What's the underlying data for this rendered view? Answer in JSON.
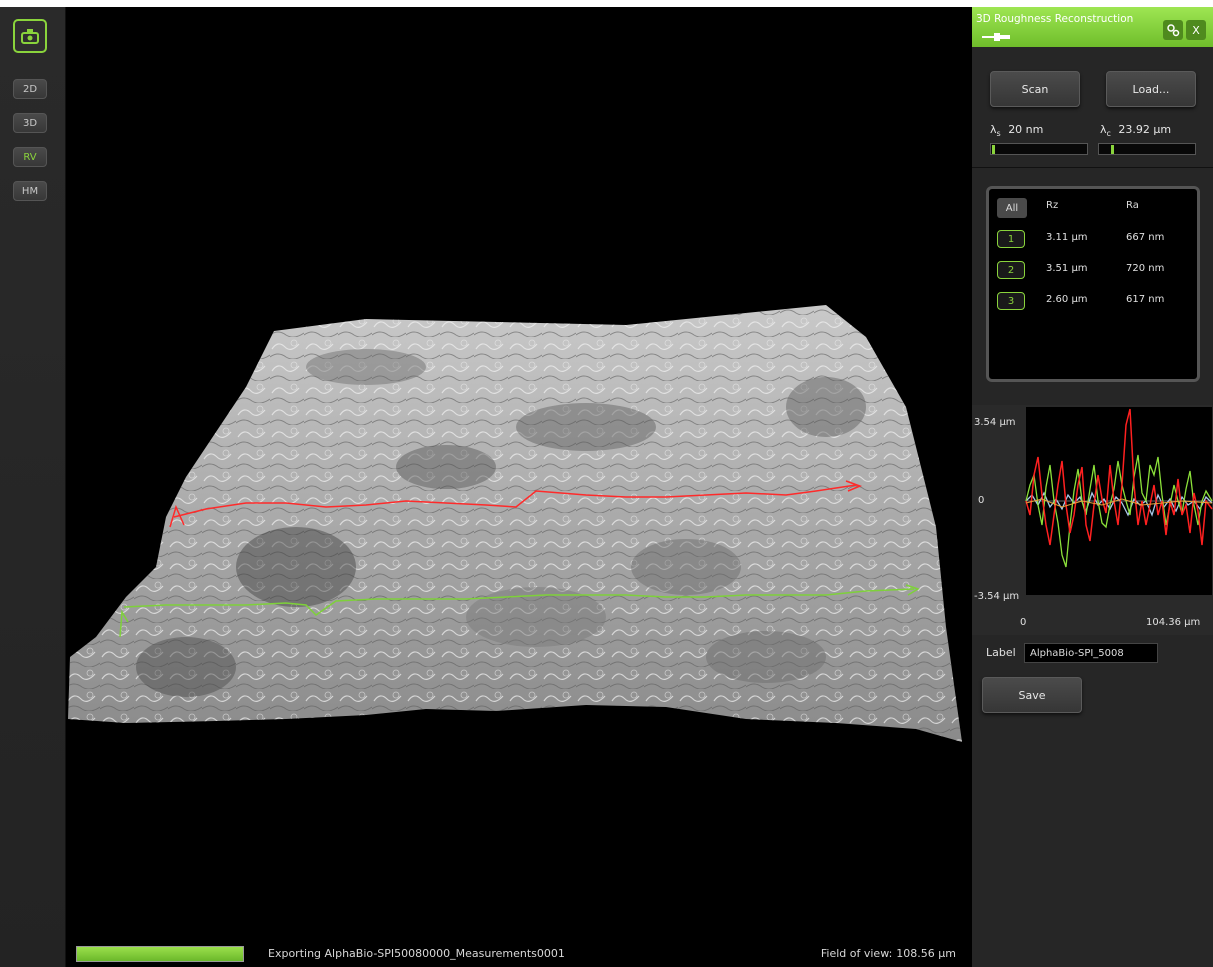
{
  "toolbar": {
    "buttons": [
      {
        "label": "2D",
        "active": false
      },
      {
        "label": "3D",
        "active": false
      },
      {
        "label": "RV",
        "active": true
      },
      {
        "label": "HM",
        "active": false
      }
    ],
    "accent_color": "#8ad43c"
  },
  "viewport": {
    "status_text": "Exporting AlphaBio-SPI50080000_Measurements0001",
    "progress": 1.0,
    "fov_label": "Field of view:",
    "fov_value": "108.56 µm",
    "profile_colors": [
      "#ff2a2a",
      "#7ed13a"
    ]
  },
  "panel": {
    "title": "3D Roughness Reconstruction",
    "close_label": "X",
    "scan_label": "Scan",
    "load_label": "Load...",
    "lambda_s_symbol": "λ",
    "lambda_s_sub": "s",
    "lambda_s_value": "20 nm",
    "lambda_c_symbol": "λ",
    "lambda_c_sub": "c",
    "lambda_c_value": "23.92 µm",
    "results": {
      "all_label": "All",
      "rz_header": "Rz",
      "ra_header": "Ra",
      "rows": [
        {
          "num": "1",
          "rz": "3.11 µm",
          "ra": "667 nm"
        },
        {
          "num": "2",
          "rz": "3.51 µm",
          "ra": "720 nm"
        },
        {
          "num": "3",
          "rz": "2.60 µm",
          "ra": "617 nm"
        }
      ]
    },
    "plot": {
      "y_max": "3.54 µm",
      "y_zero": "0",
      "y_min": "-3.54 µm",
      "x_min": "0",
      "x_max": "104.36 µm",
      "series_colors": [
        "#ff2020",
        "#8be03a",
        "#a8c8e8"
      ]
    },
    "label_text": "Label",
    "label_value": "AlphaBio-SPI_5008",
    "save_label": "Save"
  }
}
